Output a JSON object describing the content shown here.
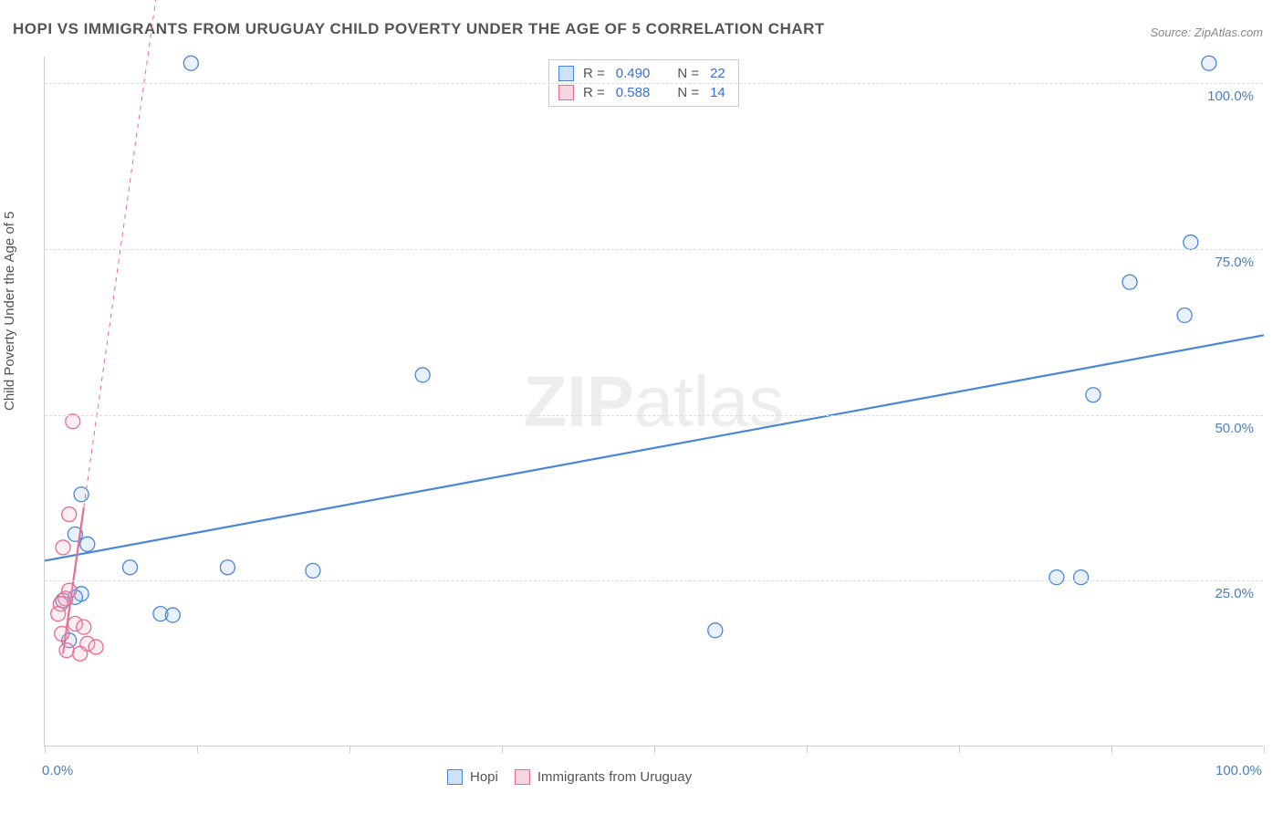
{
  "title": "HOPI VS IMMIGRANTS FROM URUGUAY CHILD POVERTY UNDER THE AGE OF 5 CORRELATION CHART",
  "source": "Source: ZipAtlas.com",
  "ylabel": "Child Poverty Under the Age of 5",
  "watermark_bold": "ZIP",
  "watermark_light": "atlas",
  "chart": {
    "type": "scatter",
    "background_color": "#ffffff",
    "grid_color": "#dddddd",
    "axis_color": "#cccccc",
    "tick_label_color": "#4a7ebb",
    "xlim": [
      0,
      100
    ],
    "ylim": [
      0,
      104
    ],
    "x_axis_ticks": [
      0,
      12.5,
      25,
      37.5,
      50,
      62.5,
      75,
      87.5,
      100
    ],
    "x_axis_labels": [
      {
        "value": 0,
        "label": "0.0%"
      },
      {
        "value": 100,
        "label": "100.0%"
      }
    ],
    "y_axis_gridlines": [
      25,
      50,
      75,
      100
    ],
    "y_axis_labels": [
      {
        "value": 25,
        "label": "25.0%"
      },
      {
        "value": 50,
        "label": "50.0%"
      },
      {
        "value": 75,
        "label": "75.0%"
      },
      {
        "value": 100,
        "label": "100.0%"
      }
    ],
    "marker_radius": 8,
    "marker_stroke_width": 1.3,
    "marker_fill_opacity": 0.22,
    "series": [
      {
        "name": "Hopi",
        "color": "#4a86d8",
        "fill": "#9cc1ee",
        "R": "0.490",
        "N": "22",
        "trend": {
          "x1": 0,
          "y1": 28,
          "x2": 100,
          "y2": 62,
          "width": 2.2,
          "dash": "",
          "extrapolate": false
        },
        "points": [
          {
            "x": 12,
            "y": 103
          },
          {
            "x": 95.5,
            "y": 103
          },
          {
            "x": 94,
            "y": 76
          },
          {
            "x": 89,
            "y": 70
          },
          {
            "x": 93.5,
            "y": 65
          },
          {
            "x": 31,
            "y": 56
          },
          {
            "x": 86,
            "y": 53
          },
          {
            "x": 3,
            "y": 38
          },
          {
            "x": 2.5,
            "y": 32
          },
          {
            "x": 3.5,
            "y": 30.5
          },
          {
            "x": 7,
            "y": 27
          },
          {
            "x": 15,
            "y": 27
          },
          {
            "x": 22,
            "y": 26.5
          },
          {
            "x": 83,
            "y": 25.5
          },
          {
            "x": 85,
            "y": 25.5
          },
          {
            "x": 3,
            "y": 23
          },
          {
            "x": 2.5,
            "y": 22.5
          },
          {
            "x": 1.5,
            "y": 22
          },
          {
            "x": 9.5,
            "y": 20
          },
          {
            "x": 10.5,
            "y": 19.8
          },
          {
            "x": 55,
            "y": 17.5
          },
          {
            "x": 2,
            "y": 16
          }
        ]
      },
      {
        "name": "Immigrants from Uruguay",
        "color": "#e96a91",
        "fill": "#f4b0c5",
        "R": "0.588",
        "N": "14",
        "trend": {
          "x1": 1.5,
          "y1": 14,
          "x2": 3.2,
          "y2": 36,
          "width": 2.2,
          "dash": "",
          "extrapolate": true,
          "ext_x1": 3.2,
          "ext_y1": 36,
          "ext_x2": 11,
          "ext_y2": 137,
          "ext_dash": "5,5"
        },
        "points": [
          {
            "x": 2.3,
            "y": 49
          },
          {
            "x": 2,
            "y": 35
          },
          {
            "x": 1.5,
            "y": 30
          },
          {
            "x": 2,
            "y": 23.5
          },
          {
            "x": 1.7,
            "y": 22.3
          },
          {
            "x": 1.3,
            "y": 21.5
          },
          {
            "x": 1.1,
            "y": 20
          },
          {
            "x": 2.5,
            "y": 18.5
          },
          {
            "x": 3.2,
            "y": 18
          },
          {
            "x": 1.4,
            "y": 17
          },
          {
            "x": 3.5,
            "y": 15.5
          },
          {
            "x": 4.2,
            "y": 15
          },
          {
            "x": 1.8,
            "y": 14.5
          },
          {
            "x": 2.9,
            "y": 14
          }
        ]
      }
    ]
  },
  "legend_bottom": [
    {
      "swatch_border": "#4a86d8",
      "swatch_fill": "#cfe1f7",
      "label": "Hopi"
    },
    {
      "swatch_border": "#e96a91",
      "swatch_fill": "#f8d6e1",
      "label": "Immigrants from Uruguay"
    }
  ],
  "legend_top": {
    "rows": [
      {
        "swatch_border": "#4a86d8",
        "swatch_fill": "#cfe1f7",
        "r_label": "R =",
        "r_value": "0.490",
        "n_label": "N =",
        "n_value": "22"
      },
      {
        "swatch_border": "#e96a91",
        "swatch_fill": "#f8d6e1",
        "r_label": "R =",
        "r_value": "0.588",
        "n_label": "N =",
        "n_value": "14"
      }
    ]
  }
}
